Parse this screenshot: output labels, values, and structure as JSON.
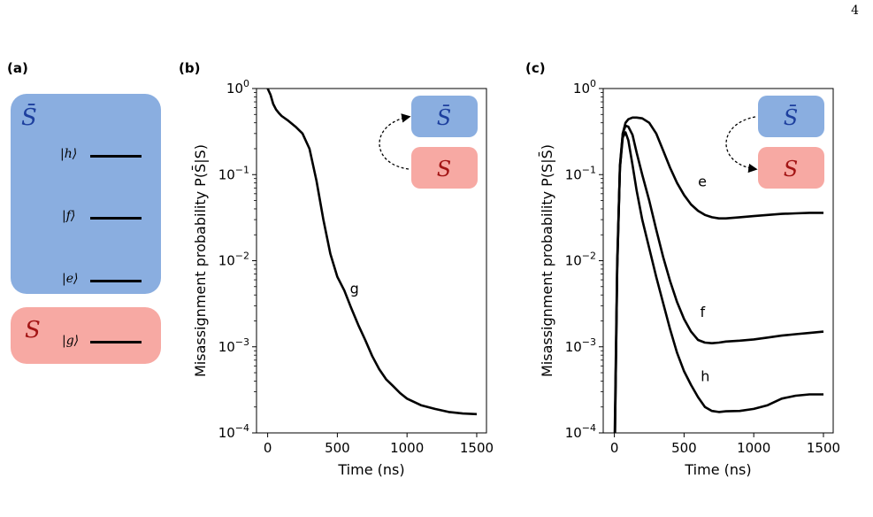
{
  "page_number": "4",
  "colors": {
    "s_bar": "#8aaee0",
    "s": "#f7a9a3",
    "s_bar_text": "#1d3f9e",
    "s_text": "#a31515",
    "curve": "#000000"
  },
  "panel_a": {
    "label": "(a)",
    "s_bar_symbol": "S̄",
    "s_symbol": "S",
    "levels": [
      {
        "state": "h",
        "text": "|h⟩"
      },
      {
        "state": "f",
        "text": "|f⟩"
      },
      {
        "state": "e",
        "text": "|e⟩"
      },
      {
        "state": "g",
        "text": "|g⟩"
      }
    ]
  },
  "panel_b": {
    "label": "(b)",
    "inset": {
      "top": "S̄",
      "bottom": "S",
      "arrow": "from S to S̄"
    }
  },
  "panel_c": {
    "label": "(c)",
    "inset": {
      "top": "S̄",
      "bottom": "S",
      "arrow": "from S̄ to S"
    }
  },
  "chart_data": [
    {
      "panel": "(b)",
      "type": "line",
      "xlabel": "Time (ns)",
      "ylabel": "Misassignment probability P(S̄|S)",
      "xlim": [
        -80,
        1570
      ],
      "ylim": [
        0.0001,
        1
      ],
      "yscale": "log",
      "xticks": [
        "0",
        "500",
        "1000",
        "1500"
      ],
      "yticks": [
        "10^0",
        "10^-1",
        "10^-2",
        "10^-3",
        "10^-4"
      ],
      "series": [
        {
          "name": "g",
          "label_at": [
            590,
            0.0047
          ],
          "x": [
            0,
            20,
            40,
            60,
            80,
            100,
            150,
            200,
            250,
            300,
            350,
            400,
            450,
            500,
            550,
            600,
            650,
            700,
            750,
            800,
            850,
            900,
            950,
            1000,
            1100,
            1200,
            1300,
            1400,
            1500
          ],
          "y": [
            1.0,
            0.85,
            0.66,
            0.57,
            0.52,
            0.48,
            0.42,
            0.36,
            0.3,
            0.2,
            0.085,
            0.03,
            0.012,
            0.0065,
            0.0045,
            0.0028,
            0.0018,
            0.0012,
            0.00078,
            0.00055,
            0.00042,
            0.00035,
            0.00029,
            0.00025,
            0.00021,
            0.00019,
            0.000175,
            0.000168,
            0.000165
          ]
        }
      ]
    },
    {
      "panel": "(c)",
      "type": "line",
      "xlabel": "Time (ns)",
      "ylabel": "Misassignment probability P(S|S̄)",
      "xlim": [
        -80,
        1570
      ],
      "ylim": [
        0.0001,
        1
      ],
      "yscale": "log",
      "xticks": [
        "0",
        "500",
        "1000",
        "1500"
      ],
      "yticks": [
        "10^0",
        "10^-1",
        "10^-2",
        "10^-3",
        "10^-4"
      ],
      "series": [
        {
          "name": "e",
          "label_at": [
            600,
            0.082
          ],
          "x": [
            0,
            20,
            40,
            60,
            80,
            100,
            130,
            160,
            200,
            250,
            300,
            350,
            400,
            450,
            500,
            550,
            600,
            650,
            700,
            750,
            800,
            900,
            1000,
            1100,
            1200,
            1300,
            1400,
            1500
          ],
          "y": [
            5e-05,
            0.01,
            0.12,
            0.3,
            0.4,
            0.44,
            0.46,
            0.46,
            0.45,
            0.4,
            0.3,
            0.19,
            0.12,
            0.08,
            0.058,
            0.045,
            0.038,
            0.034,
            0.032,
            0.031,
            0.031,
            0.032,
            0.033,
            0.034,
            0.035,
            0.0355,
            0.036,
            0.036
          ]
        },
        {
          "name": "f",
          "label_at": [
            615,
            0.0025
          ],
          "x": [
            0,
            20,
            40,
            60,
            80,
            100,
            130,
            160,
            200,
            250,
            300,
            350,
            400,
            450,
            500,
            550,
            600,
            650,
            700,
            750,
            800,
            900,
            1000,
            1100,
            1200,
            1300,
            1400,
            1500
          ],
          "y": [
            3e-05,
            0.008,
            0.13,
            0.3,
            0.37,
            0.36,
            0.29,
            0.18,
            0.1,
            0.05,
            0.023,
            0.011,
            0.0058,
            0.0033,
            0.0021,
            0.0015,
            0.0012,
            0.00112,
            0.0011,
            0.00112,
            0.00115,
            0.00118,
            0.00122,
            0.00128,
            0.00135,
            0.0014,
            0.00145,
            0.0015
          ]
        },
        {
          "name": "h",
          "label_at": [
            620,
            0.00045
          ],
          "x": [
            0,
            20,
            40,
            60,
            80,
            100,
            130,
            160,
            200,
            250,
            300,
            350,
            400,
            450,
            500,
            550,
            600,
            650,
            700,
            750,
            800,
            900,
            1000,
            1100,
            1200,
            1300,
            1400,
            1500
          ],
          "y": [
            3e-05,
            0.008,
            0.12,
            0.27,
            0.31,
            0.25,
            0.13,
            0.065,
            0.03,
            0.014,
            0.0065,
            0.0032,
            0.0016,
            0.00085,
            0.00052,
            0.00036,
            0.00026,
            0.0002,
            0.00018,
            0.000175,
            0.000178,
            0.00018,
            0.00019,
            0.00021,
            0.00025,
            0.00027,
            0.00028,
            0.00028
          ]
        }
      ]
    }
  ]
}
